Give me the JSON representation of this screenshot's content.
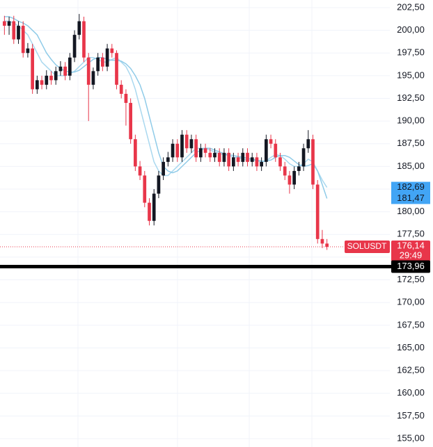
{
  "chart_data": {
    "type": "candlestick",
    "open": [
      201,
      200.5,
      201,
      199,
      200.5,
      197.5,
      198,
      193.5,
      194.5,
      194,
      195,
      194.5,
      195.5,
      196,
      195,
      197,
      199.5,
      201,
      197,
      194,
      195.5,
      197,
      196,
      198,
      197.5,
      194,
      193,
      192,
      188,
      185,
      184,
      181,
      179,
      182,
      184,
      185.5,
      186,
      187.5,
      186,
      188.5,
      187,
      188,
      186,
      187,
      186.5,
      186,
      186.5,
      185.5,
      186.5,
      185,
      186,
      185.5,
      186.5,
      185.5,
      186,
      185,
      185.5,
      188,
      187.5,
      186,
      185,
      184,
      183,
      184.5,
      185,
      187,
      188,
      183,
      177,
      176.5
    ],
    "high": [
      201.6,
      201.5,
      201.6,
      201,
      201,
      198.6,
      198.5,
      195,
      195,
      195.6,
      195.5,
      196,
      196.6,
      196.5,
      197.5,
      200,
      201.8,
      201.5,
      197.5,
      195.9,
      197.5,
      197.5,
      198.5,
      198.5,
      197.8,
      194.5,
      193.5,
      192.5,
      188.5,
      185.6,
      184.5,
      181.5,
      182.5,
      184.5,
      186,
      186.6,
      188,
      188,
      189,
      189,
      188.5,
      188.5,
      187.5,
      187.5,
      187,
      187,
      187,
      187,
      187,
      186.5,
      186.5,
      187,
      187,
      186.5,
      186.5,
      186,
      188.5,
      188.5,
      188,
      186.5,
      185.5,
      184.5,
      185,
      185.5,
      187.5,
      189,
      188.5,
      183.5,
      178,
      177
    ],
    "low": [
      199.5,
      199.5,
      198.5,
      198.5,
      197,
      197,
      193,
      193,
      193.5,
      193.5,
      194,
      194,
      195,
      194.5,
      194.5,
      196.5,
      199,
      196.5,
      190,
      193.5,
      195,
      195.5,
      195.5,
      197,
      193.5,
      192.5,
      189.5,
      187.5,
      184.5,
      183.5,
      180.5,
      178.5,
      178.5,
      181.5,
      183.5,
      185,
      185.5,
      185.5,
      185.5,
      186.5,
      186.5,
      185.5,
      185.5,
      186,
      185.5,
      185.5,
      185,
      185,
      184.5,
      184.5,
      185,
      185,
      185,
      185,
      184.5,
      184.5,
      185,
      187,
      185.5,
      184.5,
      183.5,
      182,
      182.5,
      184,
      184.5,
      186.5,
      182.5,
      176.5,
      176,
      175.8
    ],
    "close": [
      200.5,
      201,
      199,
      200.5,
      197.5,
      198,
      193.5,
      194.5,
      194,
      195,
      194.5,
      195.5,
      196,
      195,
      197,
      199.5,
      201,
      197,
      194,
      195.5,
      197,
      196,
      198,
      197.5,
      194,
      193,
      192,
      188,
      185,
      184,
      181,
      179,
      182,
      184,
      185.5,
      186,
      187.5,
      186,
      188.5,
      187,
      188,
      186,
      187,
      186.5,
      186,
      186.5,
      185.5,
      186.5,
      185,
      186,
      185.5,
      186.5,
      185.5,
      186,
      185,
      185.5,
      188,
      187.5,
      186,
      185,
      184,
      183,
      184.5,
      185,
      187,
      188,
      183,
      177,
      176.5,
      176.14
    ],
    "up_color": "#131722",
    "down_color": "#e8364a",
    "series": [
      {
        "color": "#a9d8ef",
        "values": [
          201,
          201,
          200.8,
          200.5,
          200,
          199.5,
          198.5,
          197.5,
          196.5,
          196,
          195.5,
          195,
          195,
          195,
          195.2,
          195.5,
          196,
          196.5,
          197,
          197,
          196.8,
          196.5,
          196.5,
          196.8,
          197,
          196.5,
          196,
          195,
          193.5,
          191.5,
          189.5,
          187.5,
          185.5,
          184.5,
          184,
          184,
          184.5,
          185,
          185.5,
          186,
          186.5,
          187,
          187,
          187,
          186.8,
          186.6,
          186.4,
          186.3,
          186.2,
          186,
          186,
          185.8,
          185.7,
          185.7,
          185.6,
          185.5,
          185.6,
          186,
          186.3,
          186.2,
          185.8,
          185.3,
          185,
          185,
          185.3,
          185.8,
          185.5,
          184.5,
          183.5,
          182.69
        ]
      },
      {
        "color": "#8fcbe8",
        "values": [
          201.5,
          201.5,
          201.3,
          201,
          200.8,
          200.5,
          200,
          199.5,
          198.5,
          197.5,
          196.8,
          196.2,
          195.8,
          195.5,
          195.4,
          195.4,
          195.6,
          196,
          196.4,
          196.8,
          197,
          197,
          196.8,
          196.7,
          196.7,
          196.6,
          196.3,
          195.8,
          195,
          194,
          192.5,
          190.5,
          188.5,
          186.5,
          185,
          184.5,
          184.3,
          184.5,
          185,
          185.5,
          186,
          186.5,
          186.8,
          187,
          187,
          186.8,
          186.6,
          186.4,
          186.3,
          186.2,
          186.1,
          186,
          185.9,
          185.8,
          185.7,
          185.6,
          185.6,
          185.7,
          186,
          186.2,
          186.2,
          186,
          185.6,
          185.2,
          185,
          185.1,
          185.3,
          184.5,
          183,
          181.47
        ]
      }
    ],
    "ylim": [
      154.08,
      203.34
    ],
    "yticks": [
      {
        "value": 155,
        "label": "155,00"
      },
      {
        "value": 157.5,
        "label": "157,50"
      },
      {
        "value": 160,
        "label": "160,00"
      },
      {
        "value": 162.5,
        "label": "162,50"
      },
      {
        "value": 165,
        "label": "165,00"
      },
      {
        "value": 167.5,
        "label": "167,50"
      },
      {
        "value": 170,
        "label": "170,00"
      },
      {
        "value": 172.5,
        "label": "172,50"
      },
      {
        "value": 175,
        "label": "175,00"
      },
      {
        "value": 177.5,
        "label": "177,50"
      },
      {
        "value": 180,
        "label": "180,00"
      },
      {
        "value": 182.5,
        "label": "182,50"
      },
      {
        "value": 185,
        "label": "185,00"
      },
      {
        "value": 187.5,
        "label": "187,50"
      },
      {
        "value": 190,
        "label": "190,00"
      },
      {
        "value": 192.5,
        "label": "192,50"
      },
      {
        "value": 195,
        "label": "195,00"
      },
      {
        "value": 197.5,
        "label": "197,50"
      },
      {
        "value": 200,
        "label": "200,00"
      },
      {
        "value": 202.5,
        "label": "202,50"
      }
    ],
    "grid": true,
    "ma_labels": [
      {
        "value": 182.69,
        "label": "182,69",
        "color": "#42a5f5"
      },
      {
        "value": 181.47,
        "label": "181,47",
        "color": "#42a5f5"
      }
    ],
    "last_price": {
      "value": 176.14,
      "label": "176,14",
      "symbol": "SOLUSDT",
      "countdown": "29:49",
      "color": "#e8364a"
    },
    "hline": {
      "value": 173.96,
      "label": "173,96",
      "color": "#000000"
    }
  }
}
